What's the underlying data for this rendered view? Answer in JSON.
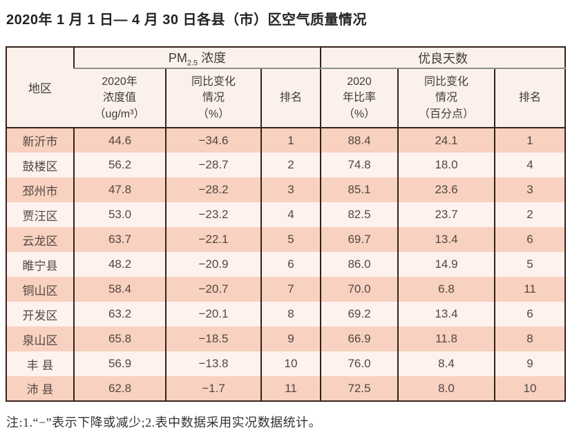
{
  "title": "2020年 1 月 1 日— 4 月 30 日各县（市）区空气质量情况",
  "table": {
    "corner_header": "地区",
    "pm_group": {
      "pre": "PM",
      "sub": "2.5",
      "post": " 浓度"
    },
    "good_group": "优良天数",
    "sub_headers": [
      "2020年\n浓度值\n（ug/m³）",
      "同比变化\n情况\n（%）",
      "排名",
      "2020\n年比率\n（%）",
      "同比变化\n情况\n（百分点）",
      "排名"
    ],
    "rows": [
      {
        "region": "新沂市",
        "pm_value": "44.6",
        "pm_change": "−34.6",
        "pm_rank": "1",
        "good_rate": "88.4",
        "good_change": "24.1",
        "good_rank": "1"
      },
      {
        "region": "鼓楼区",
        "pm_value": "56.2",
        "pm_change": "−28.7",
        "pm_rank": "2",
        "good_rate": "74.8",
        "good_change": "18.0",
        "good_rank": "4"
      },
      {
        "region": "邳州市",
        "pm_value": "47.8",
        "pm_change": "−28.2",
        "pm_rank": "3",
        "good_rate": "85.1",
        "good_change": "23.6",
        "good_rank": "3"
      },
      {
        "region": "贾汪区",
        "pm_value": "53.0",
        "pm_change": "−23.2",
        "pm_rank": "4",
        "good_rate": "82.5",
        "good_change": "23.7",
        "good_rank": "2"
      },
      {
        "region": "云龙区",
        "pm_value": "63.7",
        "pm_change": "−22.1",
        "pm_rank": "5",
        "good_rate": "69.7",
        "good_change": "13.4",
        "good_rank": "6"
      },
      {
        "region": "睢宁县",
        "pm_value": "48.2",
        "pm_change": "−20.9",
        "pm_rank": "6",
        "good_rate": "86.0",
        "good_change": "14.9",
        "good_rank": "5"
      },
      {
        "region": "铜山区",
        "pm_value": "58.4",
        "pm_change": "−20.7",
        "pm_rank": "7",
        "good_rate": "70.0",
        "good_change": "6.8",
        "good_rank": "11"
      },
      {
        "region": "开发区",
        "pm_value": "63.2",
        "pm_change": "−20.1",
        "pm_rank": "8",
        "good_rate": "69.2",
        "good_change": "13.4",
        "good_rank": "6"
      },
      {
        "region": "泉山区",
        "pm_value": "65.8",
        "pm_change": "−18.5",
        "pm_rank": "9",
        "good_rate": "66.9",
        "good_change": "11.8",
        "good_rank": "8"
      },
      {
        "region": "丰 县",
        "pm_value": "56.9",
        "pm_change": "−13.8",
        "pm_rank": "10",
        "good_rate": "76.0",
        "good_change": "8.4",
        "good_rank": "9"
      },
      {
        "region": "沛 县",
        "pm_value": "62.8",
        "pm_change": "−1.7",
        "pm_rank": "11",
        "good_rate": "72.5",
        "good_change": "8.0",
        "good_rank": "10"
      }
    ]
  },
  "note": "注:1.“−”表示下降或减少;2.表中数据采用实况数据统计。",
  "colors": {
    "row_odd": "#f8d1c0",
    "row_even": "#fdf2ed",
    "header_bg": "#fcf0ea",
    "border": "#35201a",
    "group_divider": "#8c8c8c"
  }
}
